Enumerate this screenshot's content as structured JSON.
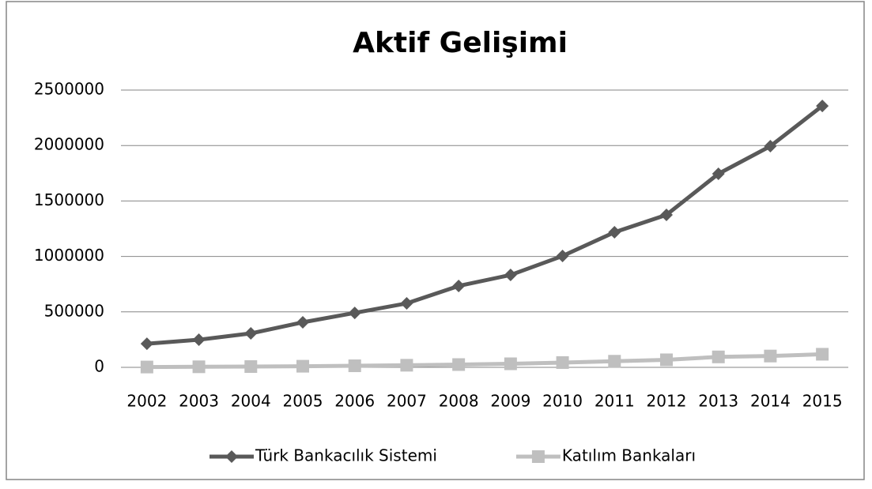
{
  "chart_data": {
    "type": "line",
    "title": "Aktif Gelişimi",
    "categories": [
      "2002",
      "2003",
      "2004",
      "2005",
      "2006",
      "2007",
      "2008",
      "2009",
      "2010",
      "2011",
      "2012",
      "2013",
      "2014",
      "2015"
    ],
    "series": [
      {
        "name": "Türk Bankacılık Sistemi",
        "color": "#595959",
        "marker": "diamond",
        "values": [
          213000,
          249000,
          306000,
          406000,
          491000,
          577000,
          734000,
          833000,
          1004000,
          1218000,
          1375000,
          1745000,
          1994000,
          2357000
        ]
      },
      {
        "name": "Katılım Bankaları",
        "color": "#bfbfbf",
        "marker": "square",
        "values": [
          3000,
          5000,
          7000,
          10000,
          14000,
          19000,
          25000,
          32000,
          43000,
          55000,
          68000,
          94000,
          102000,
          118000
        ]
      }
    ],
    "ylim": [
      0,
      2500000
    ],
    "yticks": [
      0,
      500000,
      1000000,
      1500000,
      2000000,
      2500000
    ],
    "grid": true,
    "legend": "bottom"
  }
}
